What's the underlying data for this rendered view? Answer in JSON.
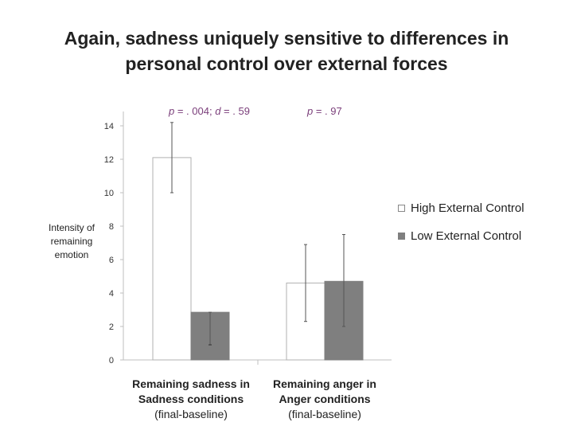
{
  "title_line1": "Again, sadness uniquely sensitive to differences in",
  "title_line2": "personal control over external forces",
  "chart_data": {
    "type": "bar",
    "title": "Again, sadness uniquely sensitive to differences in personal control over external forces",
    "ylabel_lines": [
      "Intensity of",
      "remaining",
      "emotion"
    ],
    "ylim": [
      0,
      14
    ],
    "yticks": [
      "0",
      "2",
      "4",
      "6",
      "8",
      "10",
      "12",
      "14"
    ],
    "categories": [
      {
        "line1": "Remaining sadness in",
        "line2": "Sadness conditions",
        "line3": "(final-baseline)"
      },
      {
        "line1": "Remaining anger in",
        "line2": "Anger conditions",
        "line3": "(final-baseline)"
      }
    ],
    "series": [
      {
        "name": "High External Control",
        "color": "#ffffff",
        "values": [
          12.1,
          4.6
        ],
        "error_low": [
          10.0,
          2.3
        ],
        "error_high": [
          14.2,
          6.9
        ]
      },
      {
        "name": "Low External Control",
        "color": "#7f7f7f",
        "values": [
          2.85,
          4.7
        ],
        "error_low": [
          0.9,
          2.0
        ],
        "error_high": [
          2.85,
          7.5
        ]
      }
    ],
    "annotations": [
      {
        "p": "p",
        "text": " = . 004; ",
        "d": "d",
        "text2": " = . 59"
      },
      {
        "p": "p",
        "text": " = . 97"
      }
    ],
    "legend_position": "right",
    "grid": false
  }
}
